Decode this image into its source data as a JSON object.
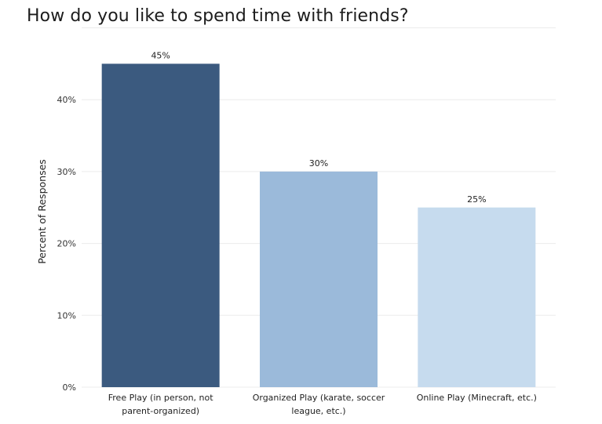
{
  "chart_data": {
    "type": "bar",
    "title": "How do you like to spend time with friends?",
    "xlabel": "",
    "ylabel": "Percent of Responses",
    "ylim": [
      0,
      50
    ],
    "yticks": [
      0,
      10,
      20,
      30,
      40
    ],
    "ytick_labels": [
      "0%",
      "10%",
      "20%",
      "30%",
      "40%"
    ],
    "categories": [
      [
        "Free Play (in person, not",
        "parent-organized)"
      ],
      [
        "Organized Play (karate, soccer",
        "league, etc.)"
      ],
      [
        "Online Play (Minecraft, etc.)"
      ]
    ],
    "values": [
      45,
      30,
      25
    ],
    "data_labels": [
      "45%",
      "30%",
      "25%"
    ],
    "colors": [
      "#3b5a7f",
      "#9bbada",
      "#c6dbee"
    ],
    "grid": true,
    "legend": "none"
  }
}
